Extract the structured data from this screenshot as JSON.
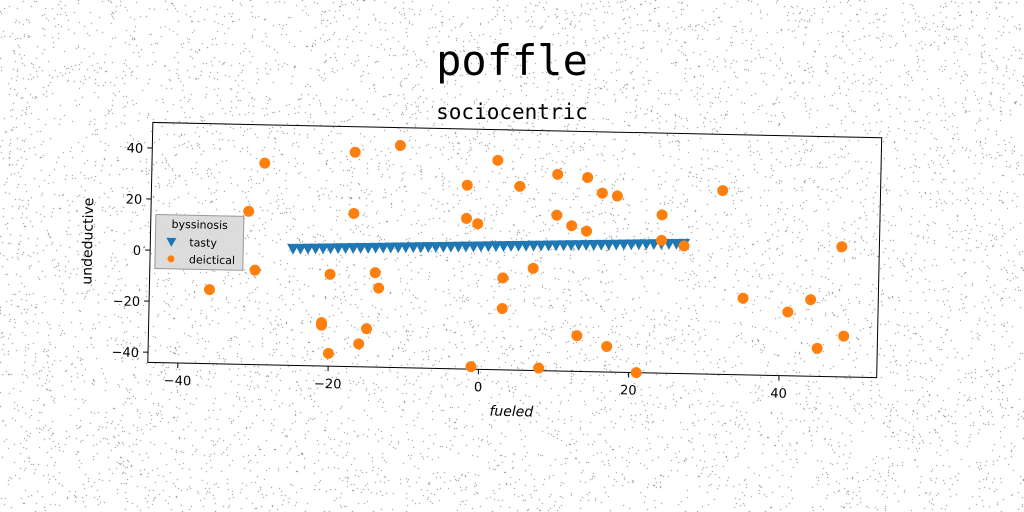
{
  "title": "poffle",
  "subtitle": "sociocentric",
  "colors": {
    "tasty": "#1f77b4",
    "deictical": "#ff7f0e",
    "background": "#ffffff"
  },
  "chart_data": {
    "type": "scatter",
    "title": "sociocentric",
    "xlabel": "fueled",
    "ylabel": "undeductive",
    "xlim": [
      -44,
      53
    ],
    "ylim": [
      -44,
      50
    ],
    "xticks": [
      -40,
      -20,
      0,
      20,
      40
    ],
    "yticks": [
      -40,
      -20,
      0,
      20,
      40
    ],
    "grid": false,
    "legend": {
      "title": "byssinosis",
      "position": "center-left"
    },
    "series": [
      {
        "name": "tasty",
        "marker": "triangle-down",
        "x": [
          -25,
          -24,
          -23,
          -22,
          -21,
          -20,
          -19,
          -18,
          -17,
          -16,
          -15,
          -14,
          -13,
          -12,
          -11,
          -10,
          -9,
          -8,
          -7,
          -6,
          -5,
          -4,
          -3,
          -2,
          -1,
          0,
          1,
          2,
          3,
          4,
          5,
          6,
          7,
          8,
          9,
          10,
          11,
          12,
          13,
          14,
          15,
          16,
          17,
          18,
          19,
          20,
          21,
          22,
          23,
          24,
          25,
          26,
          27
        ],
        "y": [
          1.7,
          1.8,
          1.9,
          2.0,
          2.1,
          2.2,
          2.3,
          2.4,
          2.5,
          2.6,
          2.7,
          2.8,
          2.9,
          3.0,
          3.1,
          3.2,
          3.3,
          3.4,
          3.5,
          3.6,
          3.7,
          3.8,
          3.9,
          4.0,
          4.1,
          4.2,
          4.3,
          4.4,
          4.5,
          4.6,
          4.7,
          4.8,
          4.9,
          5.0,
          5.1,
          5.2,
          5.3,
          5.4,
          5.5,
          5.6,
          5.7,
          5.8,
          5.9,
          6.0,
          6.1,
          6.2,
          6.3,
          6.4,
          6.5,
          6.6,
          6.7,
          6.8,
          6.9
        ]
      },
      {
        "name": "deictical",
        "marker": "circle",
        "x": [
          -29,
          -31,
          -17,
          -17,
          -11,
          2,
          -2,
          5,
          10,
          14,
          16,
          18,
          32,
          -2,
          -0.5,
          10,
          12,
          14,
          24,
          24,
          27,
          48,
          -30,
          -14,
          -13.5,
          -20,
          -36,
          7,
          3,
          3,
          35,
          41,
          44,
          -21,
          -15,
          -21,
          -20,
          -16,
          -1,
          8,
          13,
          17,
          21,
          45,
          48.5
        ],
        "y": [
          35,
          16,
          40,
          16,
          43,
          38,
          28,
          28,
          33,
          32,
          26,
          25,
          28,
          15,
          13,
          17,
          13,
          11,
          18,
          8,
          6,
          7,
          -7,
          -7,
          -13,
          -8,
          -15,
          -4,
          -8,
          -20,
          -14,
          -19,
          -14,
          -27,
          -29,
          -28,
          -39,
          -35,
          -43,
          -43,
          -30,
          -34,
          -44,
          -33,
          -28
        ]
      }
    ]
  }
}
